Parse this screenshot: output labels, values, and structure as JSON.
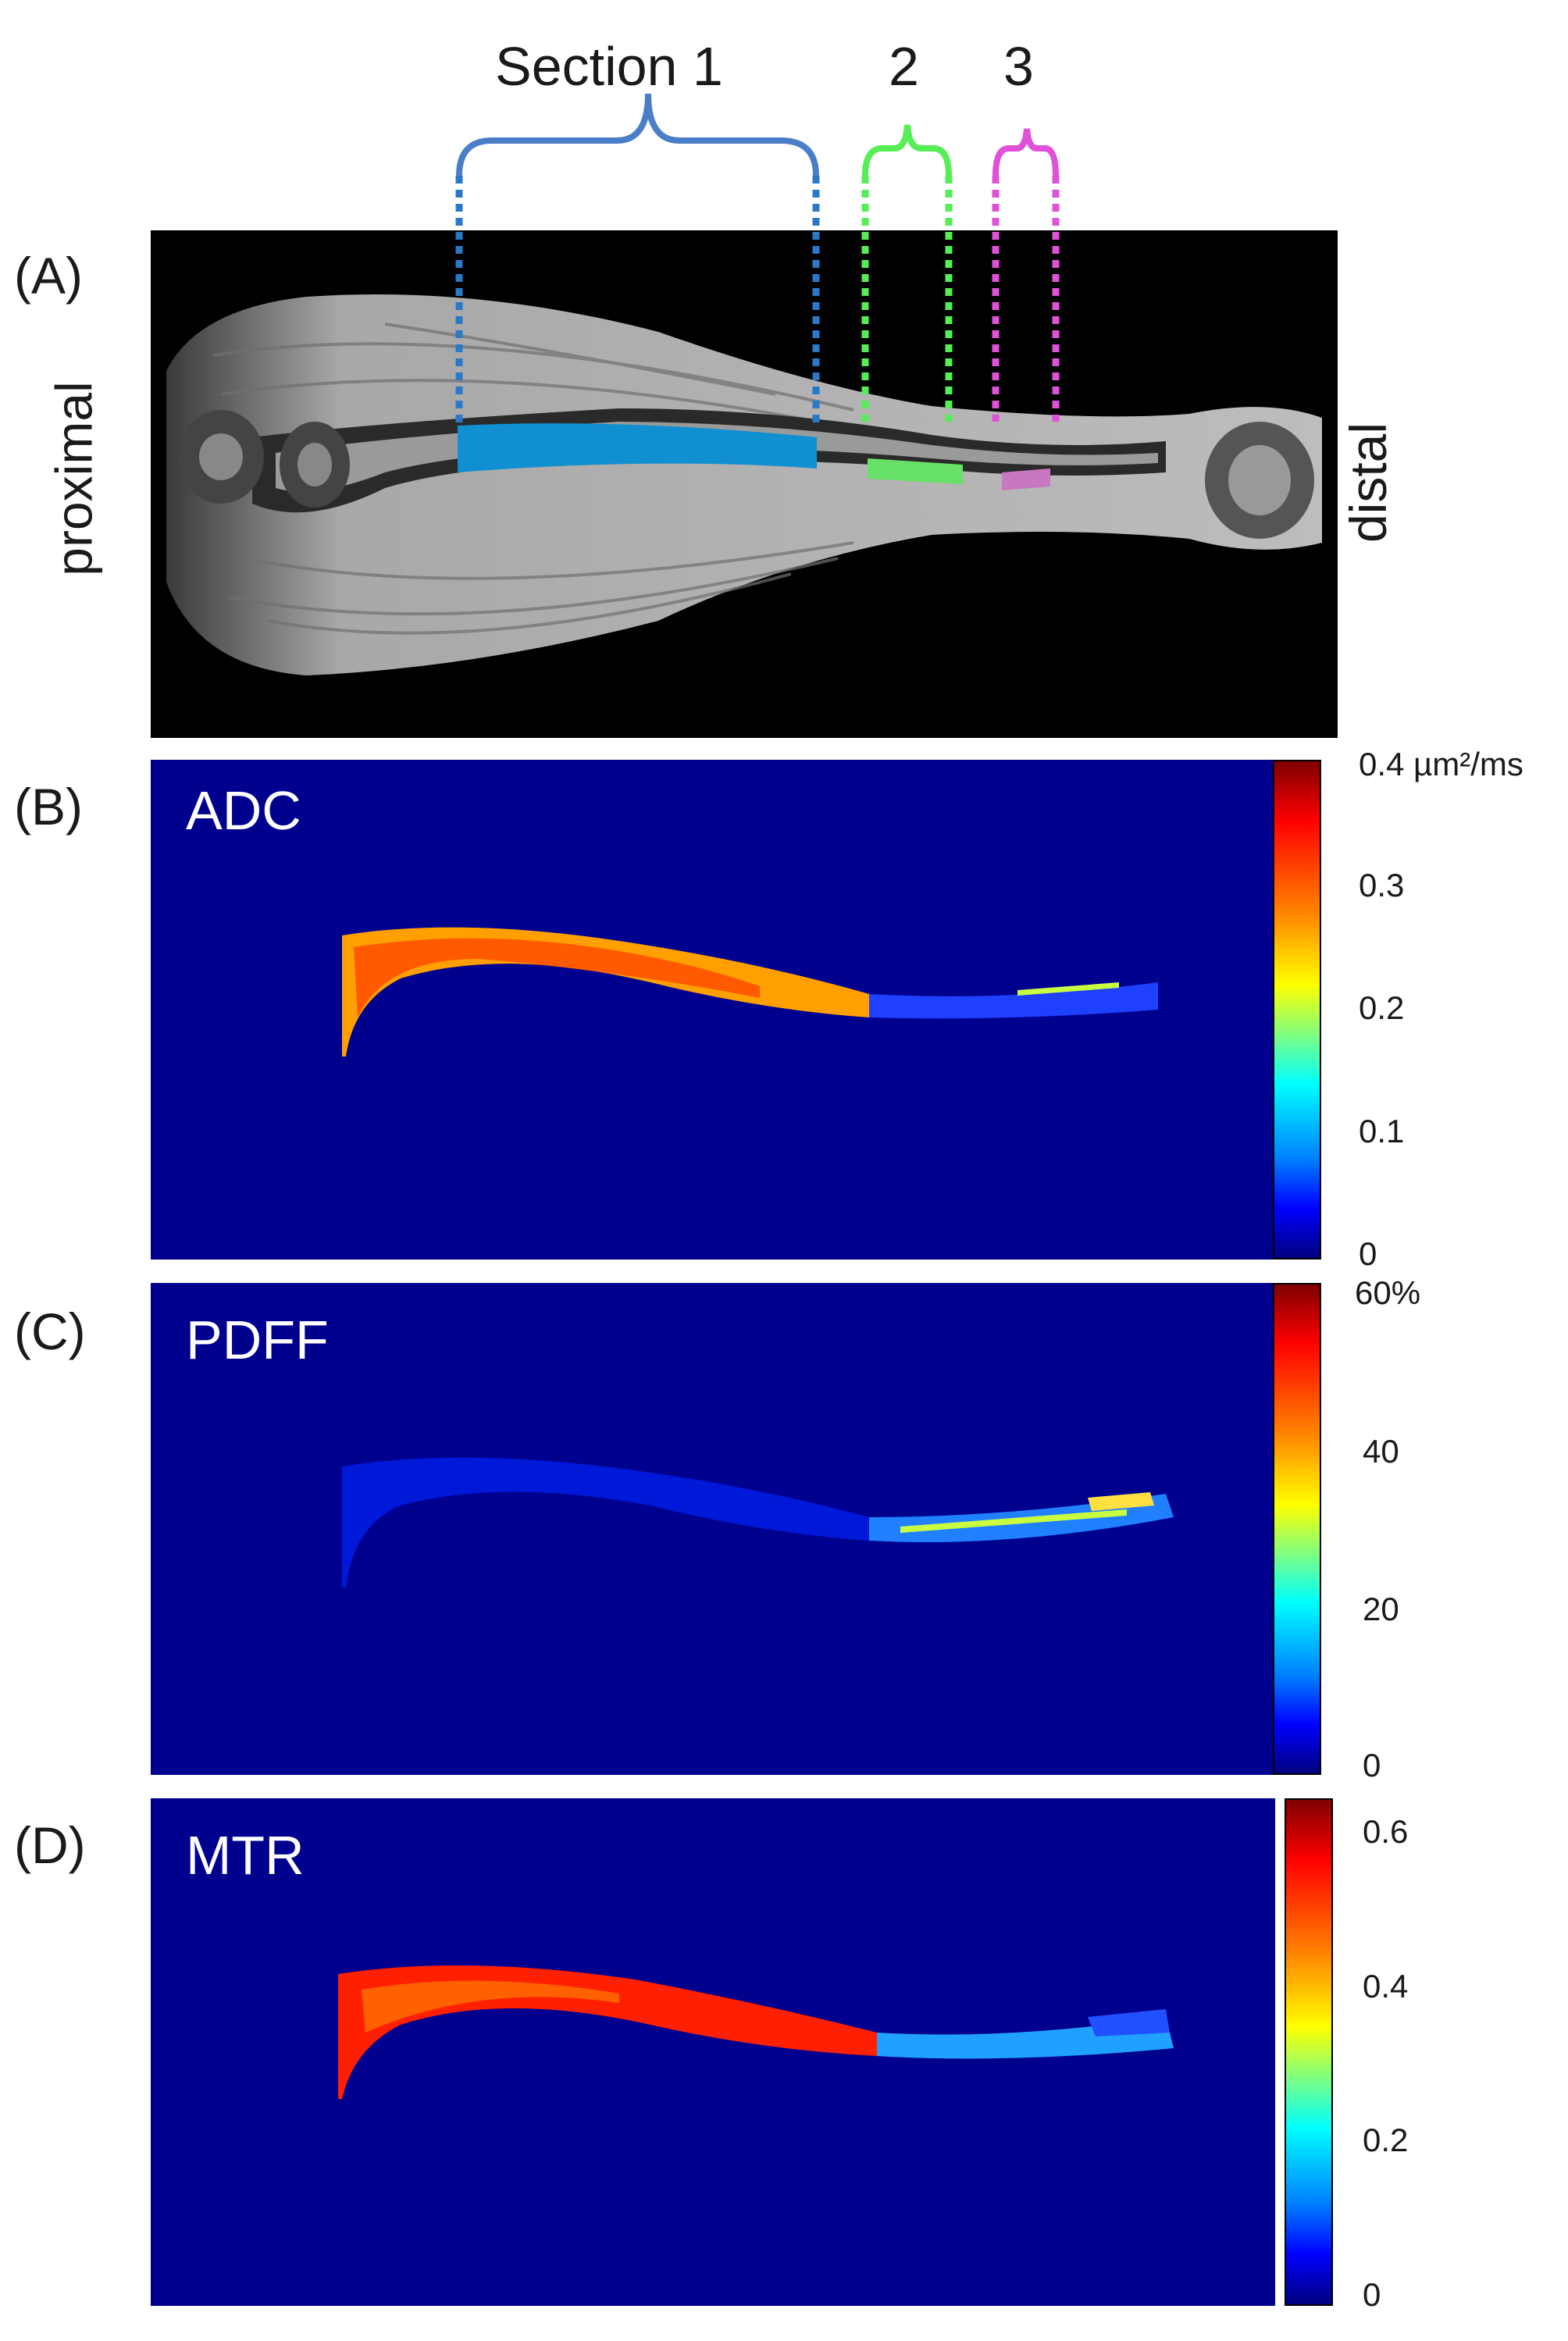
{
  "panel_a": {
    "letter": "(A)",
    "section1_label": "Section 1",
    "section2_label": "2",
    "section3_label": "3",
    "left_label": "proximal",
    "right_label": "distal",
    "colors": {
      "section1": "#4a7fc8",
      "section2": "#66ee66",
      "section3": "#e050d8"
    }
  },
  "panel_b": {
    "letter": "(B)",
    "title": "ADC",
    "colorbar_ticks": [
      "0.4 µm²/ms",
      "0.3",
      "0.2",
      "0.1",
      "0"
    ]
  },
  "panel_c": {
    "letter": "(C)",
    "title": "PDFF",
    "colorbar_ticks": [
      "60%",
      "40",
      "20",
      "0"
    ]
  },
  "panel_d": {
    "letter": "(D)",
    "title": "MTR",
    "colorbar_ticks": [
      "0.6",
      "0.4",
      "0.2",
      "0"
    ]
  }
}
